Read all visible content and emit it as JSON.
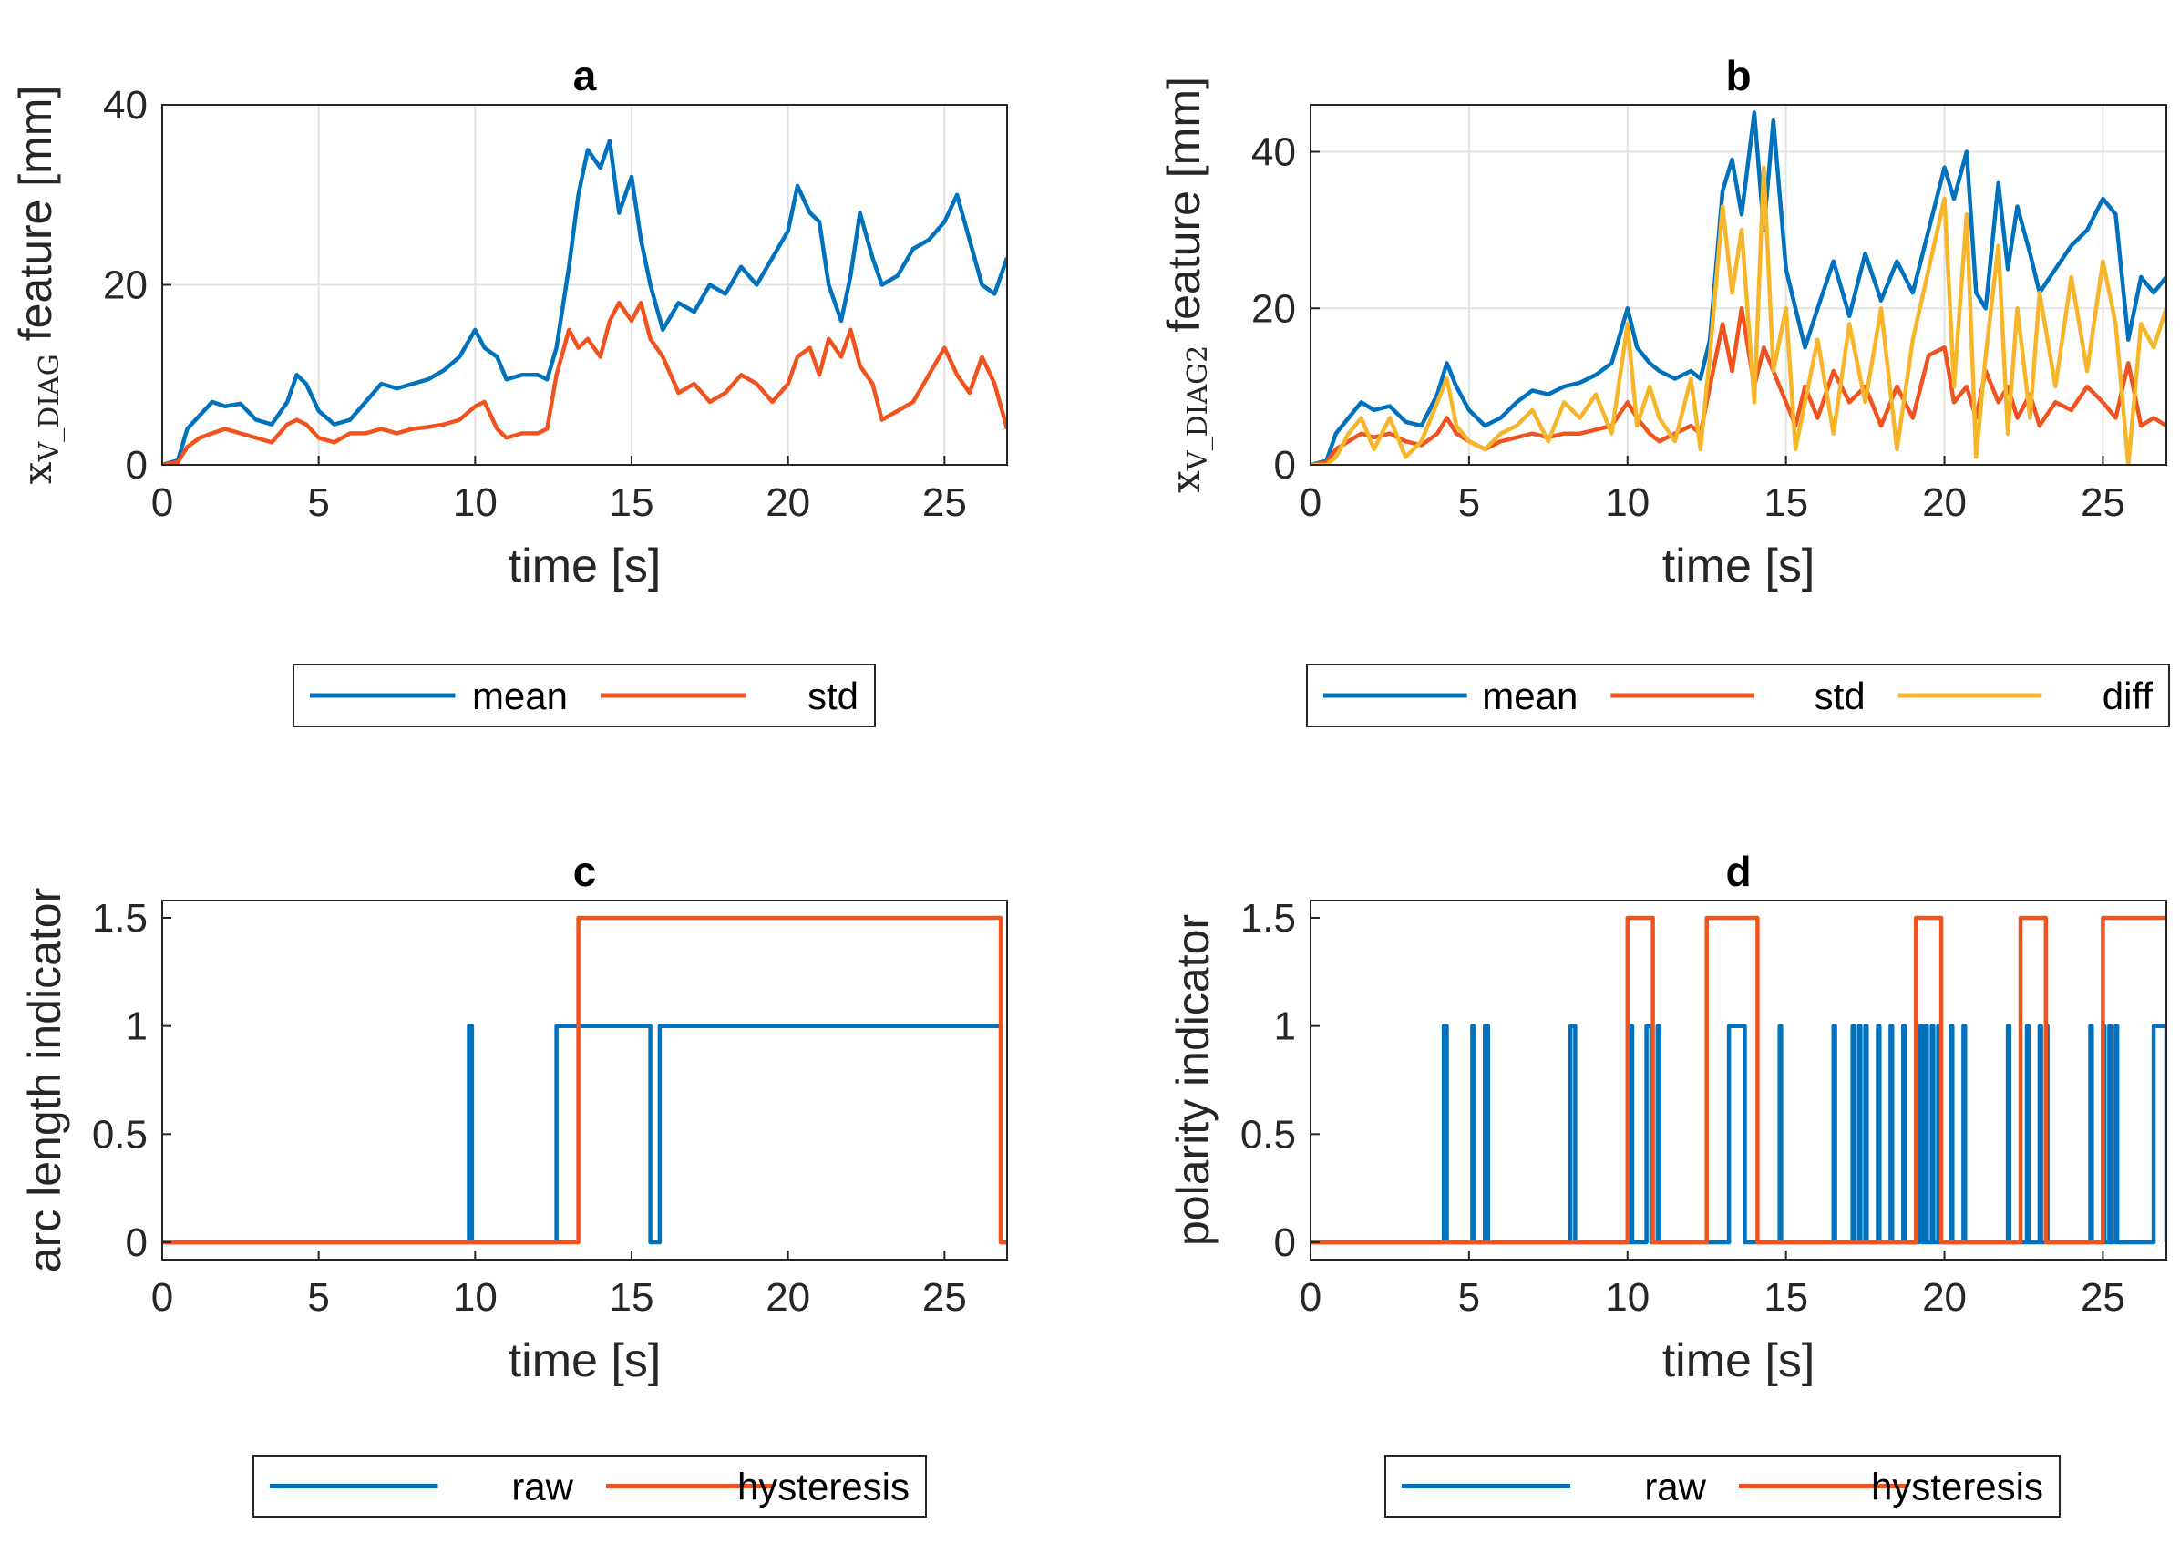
{
  "colors": {
    "blue": "#0072BD",
    "orange": "#F0531E",
    "yellow": "#F7B52A",
    "grid": "#e3e3e3",
    "axis": "#262626"
  },
  "chart_data": [
    {
      "id": "a",
      "type": "line",
      "title": "a",
      "xlabel": "time [s]",
      "ylabel_var": "x",
      "ylabel_sub": "V_DIAG",
      "ylabel_rest": "feature [mm]",
      "xlim": [
        0,
        27
      ],
      "ylim": [
        0,
        40
      ],
      "xticks": [
        0,
        5,
        10,
        15,
        20,
        25
      ],
      "yticks": [
        0,
        20,
        40
      ],
      "ytick_labels": [
        "0",
        "20",
        "40"
      ],
      "grid": true,
      "legend": {
        "placement": "below",
        "entries": [
          "mean",
          "std"
        ]
      },
      "series": [
        {
          "name": "mean",
          "color": "blue",
          "x": [
            0,
            0.5,
            0.8,
            1.2,
            1.6,
            2,
            2.5,
            3,
            3.5,
            4,
            4.3,
            4.6,
            5,
            5.5,
            6,
            6.5,
            7,
            7.5,
            8,
            8.5,
            9,
            9.5,
            10,
            10.3,
            10.7,
            11,
            11.5,
            12,
            12.3,
            12.6,
            13,
            13.3,
            13.6,
            14,
            14.3,
            14.6,
            15,
            15.3,
            15.6,
            16,
            16.5,
            17,
            17.5,
            18,
            18.5,
            19,
            19.5,
            20,
            20.3,
            20.7,
            21,
            21.3,
            21.7,
            22,
            22.3,
            22.7,
            23,
            23.5,
            24,
            24.5,
            25,
            25.4,
            25.8,
            26.2,
            26.6,
            27
          ],
          "y": [
            0,
            0.5,
            4,
            5.5,
            7,
            6.5,
            6.8,
            5,
            4.5,
            7,
            10,
            9,
            6,
            4.5,
            5,
            7,
            9,
            8.5,
            9,
            9.5,
            10.5,
            12,
            15,
            13,
            12,
            9.5,
            10,
            10,
            9.5,
            13,
            22,
            30,
            35,
            33,
            36,
            28,
            32,
            25,
            20,
            15,
            18,
            17,
            20,
            19,
            22,
            20,
            23,
            26,
            31,
            28,
            27,
            20,
            16,
            21,
            28,
            23,
            20,
            21,
            24,
            25,
            27,
            30,
            25,
            20,
            19,
            23
          ]
        },
        {
          "name": "std",
          "color": "orange",
          "x": [
            0,
            0.5,
            0.8,
            1.2,
            1.6,
            2,
            2.5,
            3,
            3.5,
            4,
            4.3,
            4.6,
            5,
            5.5,
            6,
            6.5,
            7,
            7.5,
            8,
            8.5,
            9,
            9.5,
            10,
            10.3,
            10.7,
            11,
            11.5,
            12,
            12.3,
            12.6,
            13,
            13.3,
            13.6,
            14,
            14.3,
            14.6,
            15,
            15.3,
            15.6,
            16,
            16.5,
            17,
            17.5,
            18,
            18.5,
            19,
            19.5,
            20,
            20.3,
            20.7,
            21,
            21.3,
            21.7,
            22,
            22.3,
            22.7,
            23,
            23.5,
            24,
            24.5,
            25,
            25.4,
            25.8,
            26.2,
            26.6,
            27
          ],
          "y": [
            0,
            0.3,
            2,
            3,
            3.5,
            4,
            3.5,
            3,
            2.5,
            4.5,
            5,
            4.5,
            3,
            2.5,
            3.5,
            3.5,
            4,
            3.5,
            4,
            4.2,
            4.5,
            5,
            6.5,
            7,
            4,
            3,
            3.5,
            3.5,
            4,
            10,
            15,
            13,
            14,
            12,
            16,
            18,
            16,
            18,
            14,
            12,
            8,
            9,
            7,
            8,
            10,
            9,
            7,
            9,
            12,
            13,
            10,
            14,
            12,
            15,
            11,
            9,
            5,
            6,
            7,
            10,
            13,
            10,
            8,
            12,
            9,
            4
          ]
        }
      ]
    },
    {
      "id": "b",
      "type": "line",
      "title": "b",
      "xlabel": "time [s]",
      "ylabel_var": "x",
      "ylabel_sub": "V_DIAG2",
      "ylabel_rest": "feature [mm]",
      "xlim": [
        0,
        27
      ],
      "ylim": [
        0,
        46
      ],
      "xticks": [
        0,
        5,
        10,
        15,
        20,
        25
      ],
      "yticks": [
        0,
        20,
        40
      ],
      "ytick_labels": [
        "0",
        "20",
        "40"
      ],
      "grid": true,
      "legend": {
        "placement": "below",
        "entries": [
          "mean",
          "std",
          "diff"
        ]
      },
      "series": [
        {
          "name": "mean",
          "color": "blue",
          "x": [
            0,
            0.5,
            0.8,
            1.2,
            1.6,
            2,
            2.5,
            3,
            3.5,
            4,
            4.3,
            4.6,
            5,
            5.5,
            6,
            6.5,
            7,
            7.5,
            8,
            8.5,
            9,
            9.5,
            10,
            10.3,
            10.7,
            11,
            11.5,
            12,
            12.3,
            12.6,
            13,
            13.3,
            13.6,
            14,
            14.3,
            14.6,
            15,
            15.3,
            15.6,
            16,
            16.5,
            17,
            17.5,
            18,
            18.5,
            19,
            19.5,
            20,
            20.3,
            20.7,
            21,
            21.3,
            21.7,
            22,
            22.3,
            22.7,
            23,
            23.5,
            24,
            24.5,
            25,
            25.4,
            25.8,
            26.2,
            26.6,
            27
          ],
          "y": [
            0,
            0.5,
            4,
            6,
            8,
            7,
            7.5,
            5.5,
            5,
            9,
            13,
            10,
            7,
            5,
            6,
            8,
            9.5,
            9,
            10,
            10.5,
            11.5,
            13,
            20,
            15,
            13,
            12,
            11,
            12,
            11,
            16,
            35,
            39,
            32,
            45,
            30,
            44,
            25,
            20,
            15,
            20,
            26,
            19,
            27,
            21,
            26,
            22,
            30,
            38,
            34,
            40,
            22,
            20,
            36,
            25,
            33,
            27,
            22,
            25,
            28,
            30,
            34,
            32,
            16,
            24,
            22,
            24
          ]
        },
        {
          "name": "std",
          "color": "orange",
          "x": [
            0,
            0.5,
            0.8,
            1.2,
            1.6,
            2,
            2.5,
            3,
            3.5,
            4,
            4.3,
            4.6,
            5,
            5.5,
            6,
            6.5,
            7,
            7.5,
            8,
            8.5,
            9,
            9.5,
            10,
            10.3,
            10.7,
            11,
            11.5,
            12,
            12.3,
            12.6,
            13,
            13.3,
            13.6,
            14,
            14.3,
            14.6,
            15,
            15.3,
            15.6,
            16,
            16.5,
            17,
            17.5,
            18,
            18.5,
            19,
            19.5,
            20,
            20.3,
            20.7,
            21,
            21.3,
            21.7,
            22,
            22.3,
            22.7,
            23,
            23.5,
            24,
            24.5,
            25,
            25.4,
            25.8,
            26.2,
            26.6,
            27
          ],
          "y": [
            0,
            0.3,
            2,
            3,
            4,
            3.5,
            4,
            3,
            2.5,
            4,
            6,
            4,
            3,
            2,
            3,
            3.5,
            4,
            3.5,
            4,
            4,
            4.5,
            5,
            8,
            6,
            4,
            3,
            4,
            5,
            4,
            10,
            18,
            12,
            20,
            10,
            15,
            12,
            8,
            5,
            10,
            6,
            12,
            8,
            10,
            5,
            10,
            6,
            14,
            15,
            8,
            10,
            6,
            12,
            8,
            10,
            6,
            9,
            5,
            8,
            7,
            10,
            8,
            6,
            13,
            5,
            6,
            5
          ]
        },
        {
          "name": "diff",
          "color": "yellow",
          "x": [
            0,
            0.5,
            0.8,
            1.2,
            1.6,
            2,
            2.5,
            3,
            3.5,
            4,
            4.3,
            4.6,
            5,
            5.5,
            6,
            6.5,
            7,
            7.5,
            8,
            8.5,
            9,
            9.5,
            10,
            10.3,
            10.7,
            11,
            11.5,
            12,
            12.3,
            12.6,
            13,
            13.3,
            13.6,
            14,
            14.3,
            14.6,
            15,
            15.3,
            15.6,
            16,
            16.5,
            17,
            17.5,
            18,
            18.5,
            19,
            19.5,
            20,
            20.3,
            20.7,
            21,
            21.3,
            21.7,
            22,
            22.3,
            22.7,
            23,
            23.5,
            24,
            24.5,
            25,
            25.4,
            25.8,
            26.2,
            26.6,
            27
          ],
          "y": [
            0,
            0,
            1,
            4,
            6,
            2,
            6,
            1,
            3,
            8,
            11,
            5,
            3,
            2,
            4,
            5,
            7,
            3,
            8,
            6,
            9,
            4,
            18,
            5,
            10,
            6,
            3,
            11,
            2,
            14,
            33,
            22,
            30,
            8,
            38,
            12,
            20,
            2,
            8,
            16,
            4,
            18,
            8,
            20,
            2,
            16,
            25,
            34,
            10,
            32,
            1,
            14,
            28,
            4,
            20,
            6,
            22,
            10,
            24,
            12,
            26,
            18,
            0,
            18,
            15,
            20
          ]
        }
      ]
    },
    {
      "id": "c",
      "type": "line",
      "title": "c",
      "xlabel": "time [s]",
      "ylabel": "arc length indicator",
      "xlim": [
        0,
        27
      ],
      "ylim": [
        -0.08,
        1.58
      ],
      "xticks": [
        0,
        5,
        10,
        15,
        20,
        25
      ],
      "yticks": [
        0,
        0.5,
        1,
        1.5
      ],
      "ytick_labels": [
        "0",
        "0.5",
        "1",
        "1.5"
      ],
      "grid": false,
      "legend": {
        "placement": "below",
        "entries": [
          "raw",
          "hysteresis"
        ]
      },
      "series": [
        {
          "name": "raw",
          "color": "blue",
          "x": [
            0,
            9.8,
            9.8,
            9.9,
            9.9,
            12.6,
            12.6,
            15.6,
            15.6,
            15.9,
            15.9,
            26.8,
            26.8,
            27
          ],
          "y": [
            0,
            0,
            1,
            1,
            0,
            0,
            1,
            1,
            0,
            0,
            1,
            1,
            0,
            0
          ]
        },
        {
          "name": "hysteresis",
          "color": "orange",
          "x": [
            0,
            13.3,
            13.3,
            26.8,
            26.8,
            27
          ],
          "y": [
            0,
            0,
            1.5,
            1.5,
            0,
            0
          ]
        }
      ]
    },
    {
      "id": "d",
      "type": "line",
      "title": "d",
      "xlabel": "time [s]",
      "ylabel": "polarity indicator",
      "xlim": [
        0,
        27
      ],
      "ylim": [
        -0.08,
        1.58
      ],
      "xticks": [
        0,
        5,
        10,
        15,
        20,
        25
      ],
      "yticks": [
        0,
        0.5,
        1,
        1.5
      ],
      "ytick_labels": [
        "0",
        "0.5",
        "1",
        "1.5"
      ],
      "grid": false,
      "legend": {
        "placement": "below",
        "entries": [
          "raw",
          "hysteresis"
        ]
      },
      "series": [
        {
          "name": "raw",
          "color": "blue",
          "pulses": [
            [
              4.2,
              4.3
            ],
            [
              5.1,
              5.15
            ],
            [
              5.5,
              5.6
            ],
            [
              8.2,
              8.35
            ],
            [
              10.1,
              10.15
            ],
            [
              10.6,
              10.75
            ],
            [
              10.95,
              11.0
            ],
            [
              13.2,
              13.7
            ],
            [
              14.8,
              14.85
            ],
            [
              16.5,
              16.55
            ],
            [
              17.1,
              17.15
            ],
            [
              17.3,
              17.35
            ],
            [
              17.5,
              17.55
            ],
            [
              17.9,
              17.95
            ],
            [
              18.3,
              18.35
            ],
            [
              18.7,
              18.75
            ],
            [
              19.2,
              19.3
            ],
            [
              19.4,
              19.45
            ],
            [
              19.6,
              19.65
            ],
            [
              19.8,
              19.85
            ],
            [
              20.2,
              20.25
            ],
            [
              20.6,
              20.65
            ],
            [
              22.0,
              22.05
            ],
            [
              22.6,
              22.65
            ],
            [
              23.0,
              23.05
            ],
            [
              23.2,
              23.25
            ],
            [
              24.6,
              24.65
            ],
            [
              25.0,
              25.05
            ],
            [
              25.2,
              25.25
            ],
            [
              25.4,
              25.45
            ],
            [
              26.6,
              27.0
            ]
          ],
          "low": 0,
          "high": 1
        },
        {
          "name": "hysteresis",
          "color": "orange",
          "x": [
            0,
            10.0,
            10.0,
            10.8,
            10.8,
            12.5,
            12.5,
            14.1,
            14.1,
            19.1,
            19.1,
            19.9,
            19.9,
            22.4,
            22.4,
            23.2,
            23.2,
            25.0,
            25.0,
            27
          ],
          "y": [
            0,
            0,
            1.5,
            1.5,
            0,
            0,
            1.5,
            1.5,
            0,
            0,
            1.5,
            1.5,
            0,
            0,
            1.5,
            1.5,
            0,
            0,
            1.5,
            1.5
          ]
        }
      ]
    }
  ]
}
